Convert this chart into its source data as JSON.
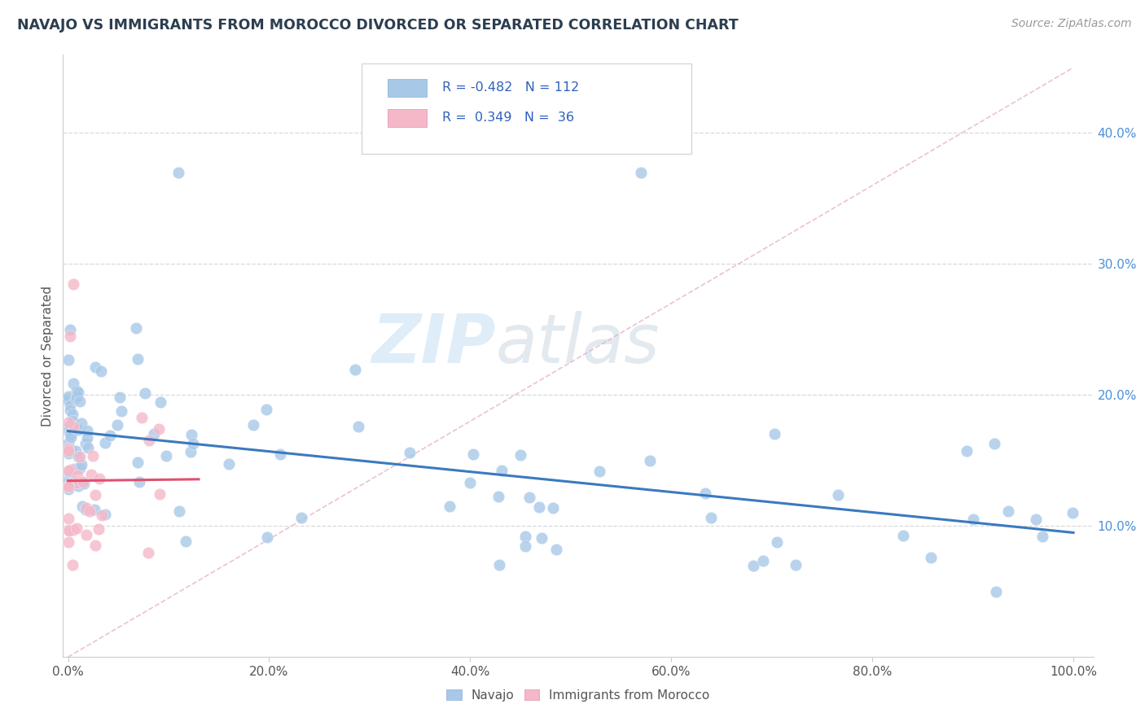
{
  "title": "NAVAJO VS IMMIGRANTS FROM MOROCCO DIVORCED OR SEPARATED CORRELATION CHART",
  "source": "Source: ZipAtlas.com",
  "ylabel": "Divorced or Separated",
  "watermark_zip": "ZIP",
  "watermark_atlas": "atlas",
  "legend_navajo_R": "-0.482",
  "legend_navajo_N": "112",
  "legend_morocco_R": "0.349",
  "legend_morocco_N": "36",
  "navajo_color": "#a8c8e8",
  "morocco_color": "#f5b8c8",
  "navajo_line_color": "#3a7abf",
  "morocco_line_color": "#e05070",
  "diagonal_color": "#e0c8d0",
  "background_color": "#ffffff",
  "grid_color": "#d8d8d8",
  "ytick_color": "#4a90d9",
  "title_color": "#2c3e50",
  "source_color": "#999999",
  "ylabel_color": "#555555",
  "xtick_color": "#555555",
  "navajo_seed": 7,
  "morocco_seed": 13
}
